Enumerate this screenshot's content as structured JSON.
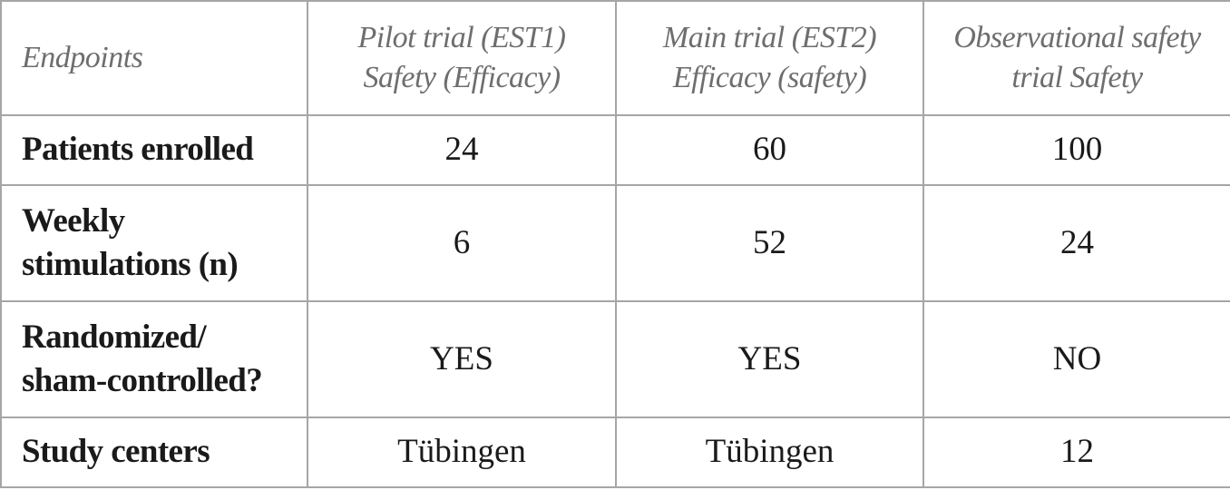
{
  "table": {
    "header": [
      [
        "Endpoints"
      ],
      [
        "Pilot trial (EST1)",
        "Safety (Efficacy)"
      ],
      [
        "Main trial (EST2)",
        "Efficacy (safety)"
      ],
      [
        "Observational safety",
        "trial Safety"
      ]
    ],
    "rows": [
      [
        [
          "Patients enrolled"
        ],
        24,
        60,
        100
      ],
      [
        [
          "Weekly",
          "stimulations (n)"
        ],
        6,
        52,
        24
      ],
      [
        [
          "Randomized/",
          "sham-controlled?"
        ],
        "YES",
        "YES",
        "NO"
      ],
      [
        [
          "Study centers"
        ],
        "Tübingen",
        "Tübingen",
        12
      ]
    ]
  }
}
